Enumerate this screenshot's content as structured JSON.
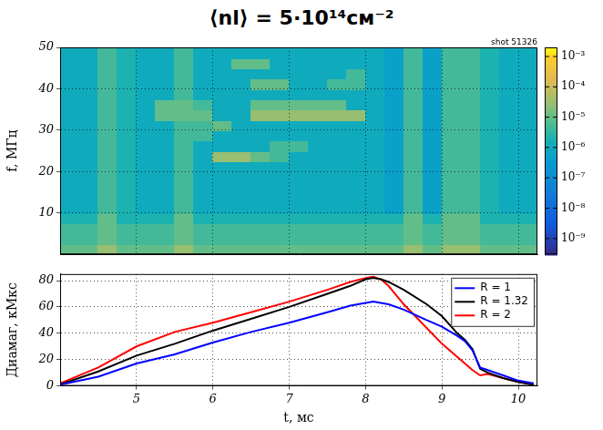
{
  "title": "⟨nl⟩ = 5·10¹⁴см⁻²",
  "chart_data": [
    {
      "type": "heatmap",
      "annotation": "shot 51326",
      "y_label": "f, МГц",
      "x": [
        4.125,
        4.375,
        4.625,
        4.875,
        5.125,
        5.375,
        5.625,
        5.875,
        6.125,
        6.375,
        6.625,
        6.875,
        7.125,
        7.375,
        7.625,
        7.875,
        8.125,
        8.375,
        8.625,
        8.875,
        9.125,
        9.375,
        9.625,
        9.875,
        10.125
      ],
      "y": [
        1.25,
        3.75,
        6.25,
        8.75,
        11.25,
        13.75,
        16.25,
        18.75,
        21.25,
        23.75,
        26.25,
        28.75,
        31.25,
        33.75,
        36.25,
        38.75,
        41.25,
        43.75,
        46.25,
        48.75
      ],
      "cells": [
        [
          1e-05,
          1e-05,
          3e-05,
          1e-05,
          1e-05,
          1e-05,
          3e-05,
          1e-05,
          1e-05,
          1e-05,
          1e-05,
          1e-05,
          1e-05,
          1e-05,
          1e-05,
          1e-05,
          1e-05,
          1e-05,
          3e-05,
          1e-05,
          3e-05,
          3e-05,
          1e-05,
          1e-05,
          1e-05
        ],
        [
          5e-06,
          5e-06,
          1e-05,
          5e-06,
          5e-06,
          5e-06,
          1e-05,
          5e-06,
          5e-06,
          5e-06,
          5e-06,
          5e-06,
          5e-06,
          5e-06,
          5e-06,
          5e-06,
          5e-06,
          5e-06,
          1e-05,
          5e-06,
          1e-05,
          1e-05,
          5e-06,
          5e-06,
          5e-06
        ],
        [
          5e-06,
          5e-06,
          1e-05,
          5e-06,
          5e-06,
          5e-06,
          1e-05,
          5e-06,
          5e-06,
          5e-06,
          5e-06,
          5e-06,
          5e-06,
          5e-06,
          5e-06,
          5e-06,
          5e-06,
          5e-06,
          1e-05,
          5e-06,
          1e-05,
          1e-05,
          5e-06,
          5e-06,
          5e-06
        ],
        [
          2e-06,
          2e-06,
          1e-05,
          2e-06,
          2e-06,
          2e-06,
          1e-05,
          2e-06,
          2e-06,
          2e-06,
          2e-06,
          2e-06,
          2e-06,
          2e-06,
          2e-06,
          2e-06,
          2e-06,
          2e-06,
          1e-05,
          2e-06,
          1e-05,
          1e-05,
          2e-06,
          2e-06,
          2e-06
        ],
        [
          1e-06,
          1e-06,
          5e-06,
          2e-06,
          1e-06,
          1e-06,
          5e-06,
          1e-06,
          1e-06,
          1e-06,
          1e-06,
          1e-06,
          1e-06,
          1e-06,
          1e-06,
          1e-06,
          1e-06,
          5e-07,
          5e-06,
          5e-07,
          5e-06,
          5e-06,
          2e-06,
          1e-06,
          1e-06
        ],
        [
          1e-06,
          1e-06,
          5e-06,
          2e-06,
          1e-06,
          1e-06,
          5e-06,
          1e-06,
          1e-06,
          1e-06,
          1e-06,
          1e-06,
          1e-06,
          1e-06,
          1e-06,
          1e-06,
          1e-06,
          5e-07,
          5e-06,
          5e-07,
          5e-06,
          5e-06,
          2e-06,
          1e-06,
          1e-06
        ],
        [
          1e-06,
          1e-06,
          5e-06,
          2e-06,
          1e-06,
          1e-06,
          5e-06,
          1e-06,
          1e-06,
          1e-06,
          1e-06,
          1e-06,
          1e-06,
          1e-06,
          1e-06,
          1e-06,
          1e-06,
          5e-07,
          5e-06,
          5e-07,
          5e-06,
          5e-06,
          2e-06,
          1e-06,
          1e-06
        ],
        [
          1e-06,
          1e-06,
          5e-06,
          2e-06,
          1e-06,
          1e-06,
          5e-06,
          1e-06,
          1e-06,
          1e-06,
          1e-06,
          1e-06,
          1e-06,
          1e-06,
          1e-06,
          1e-06,
          1e-06,
          5e-07,
          5e-06,
          5e-07,
          5e-06,
          5e-06,
          2e-06,
          1e-06,
          1e-06
        ],
        [
          1e-06,
          1e-06,
          5e-06,
          2e-06,
          1e-06,
          1e-06,
          5e-06,
          1e-06,
          1e-06,
          1e-06,
          1e-06,
          1e-06,
          1e-06,
          1e-06,
          1e-06,
          1e-06,
          1e-06,
          5e-07,
          5e-06,
          5e-07,
          5e-06,
          5e-06,
          2e-06,
          1e-06,
          1e-06
        ],
        [
          1e-06,
          1e-06,
          5e-06,
          2e-06,
          1e-06,
          1e-06,
          5e-06,
          1e-06,
          3e-05,
          3e-05,
          1e-05,
          5e-06,
          1e-06,
          1e-06,
          1e-06,
          1e-06,
          1e-06,
          5e-07,
          5e-06,
          5e-07,
          5e-06,
          5e-06,
          2e-06,
          1e-06,
          1e-06
        ],
        [
          1e-06,
          1e-06,
          5e-06,
          2e-06,
          1e-06,
          1e-06,
          5e-06,
          1e-06,
          1e-06,
          1e-06,
          1e-06,
          5e-06,
          5e-06,
          1e-06,
          1e-06,
          1e-06,
          1e-06,
          5e-07,
          5e-06,
          5e-07,
          5e-06,
          5e-06,
          2e-06,
          1e-06,
          1e-06
        ],
        [
          1e-06,
          1e-06,
          5e-06,
          2e-06,
          1e-06,
          1e-06,
          5e-06,
          5e-06,
          1e-06,
          1e-06,
          1e-06,
          1e-06,
          1e-06,
          1e-06,
          1e-06,
          1e-06,
          1e-06,
          5e-07,
          5e-06,
          5e-07,
          5e-06,
          5e-06,
          2e-06,
          1e-06,
          1e-06
        ],
        [
          1e-06,
          1e-06,
          5e-06,
          2e-06,
          1e-06,
          1e-06,
          5e-06,
          5e-06,
          1e-05,
          1e-06,
          1e-06,
          1e-06,
          1e-06,
          1e-06,
          1e-06,
          1e-06,
          1e-06,
          5e-07,
          5e-06,
          5e-07,
          5e-06,
          5e-06,
          2e-06,
          1e-06,
          1e-06
        ],
        [
          1e-06,
          1e-06,
          5e-06,
          2e-06,
          1e-06,
          1e-05,
          1e-05,
          1e-05,
          1e-06,
          1e-06,
          3e-05,
          3e-05,
          3e-05,
          3e-05,
          3e-05,
          3e-05,
          1e-06,
          5e-07,
          5e-06,
          5e-07,
          5e-06,
          5e-06,
          2e-06,
          1e-06,
          1e-06
        ],
        [
          1e-06,
          1e-06,
          5e-06,
          2e-06,
          1e-06,
          1e-05,
          1e-05,
          5e-06,
          1e-06,
          1e-06,
          1e-05,
          1e-05,
          1e-05,
          1e-05,
          1e-05,
          1e-06,
          1e-06,
          5e-07,
          5e-06,
          5e-07,
          5e-06,
          5e-06,
          2e-06,
          1e-06,
          1e-06
        ],
        [
          1e-06,
          1e-06,
          5e-06,
          2e-06,
          1e-06,
          1e-06,
          5e-06,
          1e-06,
          1e-06,
          1e-06,
          1e-06,
          1e-06,
          1e-06,
          1e-06,
          1e-06,
          1e-06,
          1e-06,
          5e-07,
          5e-06,
          5e-07,
          5e-06,
          5e-06,
          2e-06,
          1e-06,
          1e-06
        ],
        [
          1e-06,
          1e-06,
          5e-06,
          2e-06,
          1e-06,
          1e-06,
          5e-06,
          1e-06,
          1e-06,
          1e-06,
          1e-05,
          1e-05,
          1e-06,
          1e-06,
          5e-06,
          5e-06,
          1e-06,
          5e-07,
          5e-06,
          5e-07,
          5e-06,
          5e-06,
          2e-06,
          1e-06,
          1e-06
        ],
        [
          1e-06,
          1e-06,
          5e-06,
          2e-06,
          1e-06,
          1e-06,
          5e-06,
          1e-06,
          1e-06,
          1e-06,
          1e-06,
          1e-06,
          1e-06,
          1e-06,
          1e-06,
          5e-06,
          1e-06,
          5e-07,
          5e-06,
          5e-07,
          5e-06,
          5e-06,
          2e-06,
          1e-06,
          1e-06
        ],
        [
          1e-06,
          1e-06,
          5e-06,
          2e-06,
          1e-06,
          1e-06,
          5e-06,
          1e-06,
          1e-06,
          1e-05,
          1e-05,
          1e-06,
          1e-06,
          1e-06,
          1e-06,
          1e-06,
          1e-06,
          5e-07,
          5e-06,
          5e-07,
          5e-06,
          5e-06,
          2e-06,
          1e-06,
          1e-06
        ],
        [
          1e-06,
          1e-06,
          5e-06,
          2e-06,
          1e-06,
          1e-06,
          5e-06,
          1e-06,
          1e-06,
          1e-06,
          1e-06,
          1e-06,
          1e-06,
          1e-06,
          1e-06,
          1e-06,
          1e-06,
          5e-07,
          5e-06,
          5e-07,
          5e-06,
          5e-06,
          2e-06,
          1e-06,
          1e-06
        ]
      ],
      "xlim": [
        4,
        10.25
      ],
      "xticks": [
        5,
        6,
        7,
        8,
        9,
        10
      ],
      "ylim": [
        0,
        50
      ],
      "yticks": [
        10,
        20,
        30,
        40,
        50
      ],
      "grid": true,
      "tick_labels": "y",
      "colorbar": {
        "log": true,
        "range": [
          3e-10,
          0.002
        ],
        "ticks": [
          {
            "value": 0.001,
            "label": "10⁻³"
          },
          {
            "value": 0.0001,
            "label": "10⁻⁴"
          },
          {
            "value": 1e-05,
            "label": "10⁻⁵"
          },
          {
            "value": 1e-06,
            "label": "10⁻⁶"
          },
          {
            "value": 1e-07,
            "label": "10⁻⁷"
          },
          {
            "value": 1e-08,
            "label": "10⁻⁸"
          },
          {
            "value": 1e-09,
            "label": "10⁻⁹"
          }
        ]
      }
    },
    {
      "type": "line",
      "x_label": "t, мс",
      "y_label": "Диамаг, кМкс",
      "x": [
        4.0,
        4.5,
        5.0,
        5.5,
        6.0,
        6.5,
        7.0,
        7.5,
        7.8,
        8.0,
        8.1,
        8.2,
        8.3,
        8.5,
        8.8,
        9.0,
        9.2,
        9.3,
        9.4,
        9.5,
        9.6,
        9.8,
        10.0,
        10.2
      ],
      "series": [
        {
          "name": "R = 1",
          "color": "#0000ff",
          "values": [
            1,
            7,
            17,
            24,
            33,
            41,
            48,
            56,
            61,
            63,
            64,
            63,
            62,
            58,
            50,
            45,
            38,
            34,
            27,
            14,
            12,
            8,
            4,
            2
          ]
        },
        {
          "name": "R = 1.32",
          "color": "#000000",
          "values": [
            1,
            11,
            23,
            32,
            42,
            51,
            60,
            70,
            76,
            81,
            82,
            81,
            79,
            73,
            62,
            53,
            40,
            35,
            28,
            13,
            10,
            6,
            3,
            1
          ]
        },
        {
          "name": "R = 2",
          "color": "#ff0000",
          "values": [
            2,
            14,
            30,
            41,
            48,
            56,
            64,
            73,
            79,
            82,
            83,
            81,
            76,
            62,
            44,
            32,
            22,
            17,
            12,
            8,
            9,
            6,
            3,
            1
          ]
        }
      ],
      "xlim": [
        4,
        10.25
      ],
      "xticks": [
        5,
        6,
        7,
        8,
        9,
        10
      ],
      "ylim": [
        0,
        85
      ],
      "yticks": [
        0,
        20,
        40,
        60,
        80
      ],
      "grid": true,
      "legend": "upper right"
    }
  ]
}
